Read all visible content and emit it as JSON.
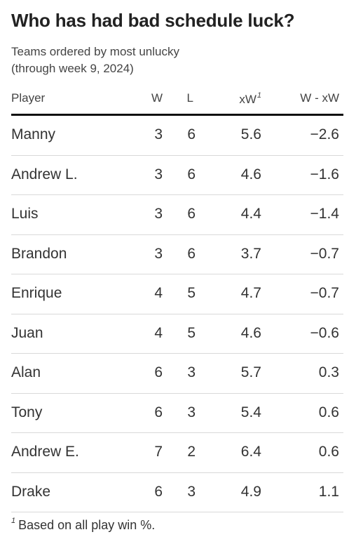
{
  "title": "Who has had bad schedule luck?",
  "subtitle": {
    "line1": "Teams ordered by most unlucky",
    "line2": "(through week 9, 2024)"
  },
  "columns": {
    "player": "Player",
    "w": "W",
    "l": "L",
    "xw": "xW",
    "xw_footnote_marker": "1",
    "diff": "W - xW"
  },
  "rows": [
    {
      "player": "Manny",
      "w": "3",
      "l": "6",
      "xw": "5.6",
      "diff": "−2.6"
    },
    {
      "player": "Andrew L.",
      "w": "3",
      "l": "6",
      "xw": "4.6",
      "diff": "−1.6"
    },
    {
      "player": "Luis",
      "w": "3",
      "l": "6",
      "xw": "4.4",
      "diff": "−1.4"
    },
    {
      "player": "Brandon",
      "w": "3",
      "l": "6",
      "xw": "3.7",
      "diff": "−0.7"
    },
    {
      "player": "Enrique",
      "w": "4",
      "l": "5",
      "xw": "4.7",
      "diff": "−0.7"
    },
    {
      "player": "Juan",
      "w": "4",
      "l": "5",
      "xw": "4.6",
      "diff": "−0.6"
    },
    {
      "player": "Alan",
      "w": "6",
      "l": "3",
      "xw": "5.7",
      "diff": "0.3"
    },
    {
      "player": "Tony",
      "w": "6",
      "l": "3",
      "xw": "5.4",
      "diff": "0.6"
    },
    {
      "player": "Andrew E.",
      "w": "7",
      "l": "2",
      "xw": "6.4",
      "diff": "0.6"
    },
    {
      "player": "Drake",
      "w": "6",
      "l": "3",
      "xw": "4.9",
      "diff": "1.1"
    }
  ],
  "footnote": {
    "marker": "1",
    "text": "Based on all play win %."
  }
}
